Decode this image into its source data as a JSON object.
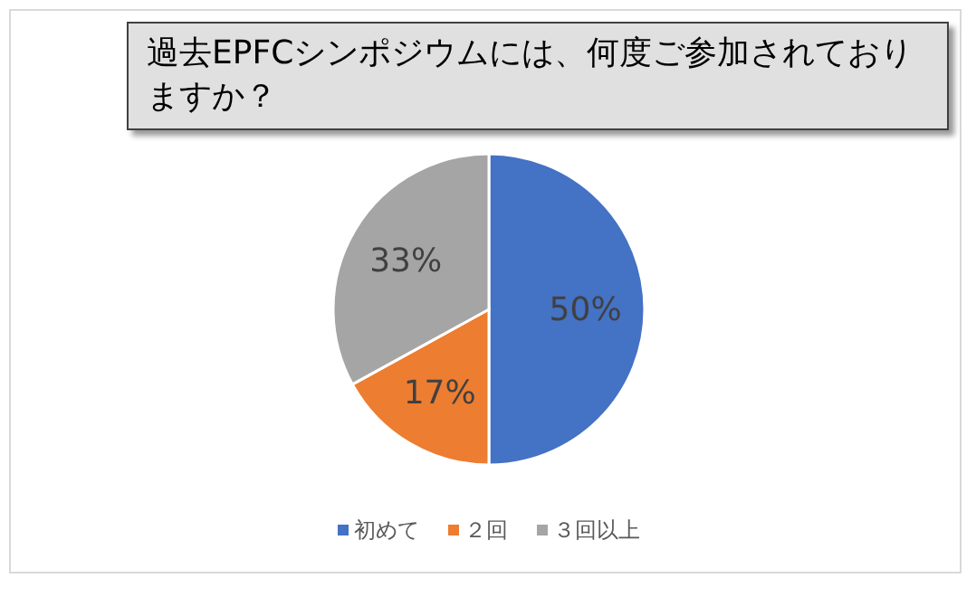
{
  "chart_data": {
    "type": "pie",
    "title": "過去EPFCシンポジウムには、何度ご参加されておりますか？",
    "categories": [
      "初めて",
      "２回",
      "３回以上"
    ],
    "values": [
      50,
      17,
      33
    ],
    "colors": [
      "#4472c4",
      "#ed7d31",
      "#a5a5a5"
    ],
    "value_labels": [
      "50%",
      "17%",
      "33%"
    ],
    "legend": "bottom"
  }
}
